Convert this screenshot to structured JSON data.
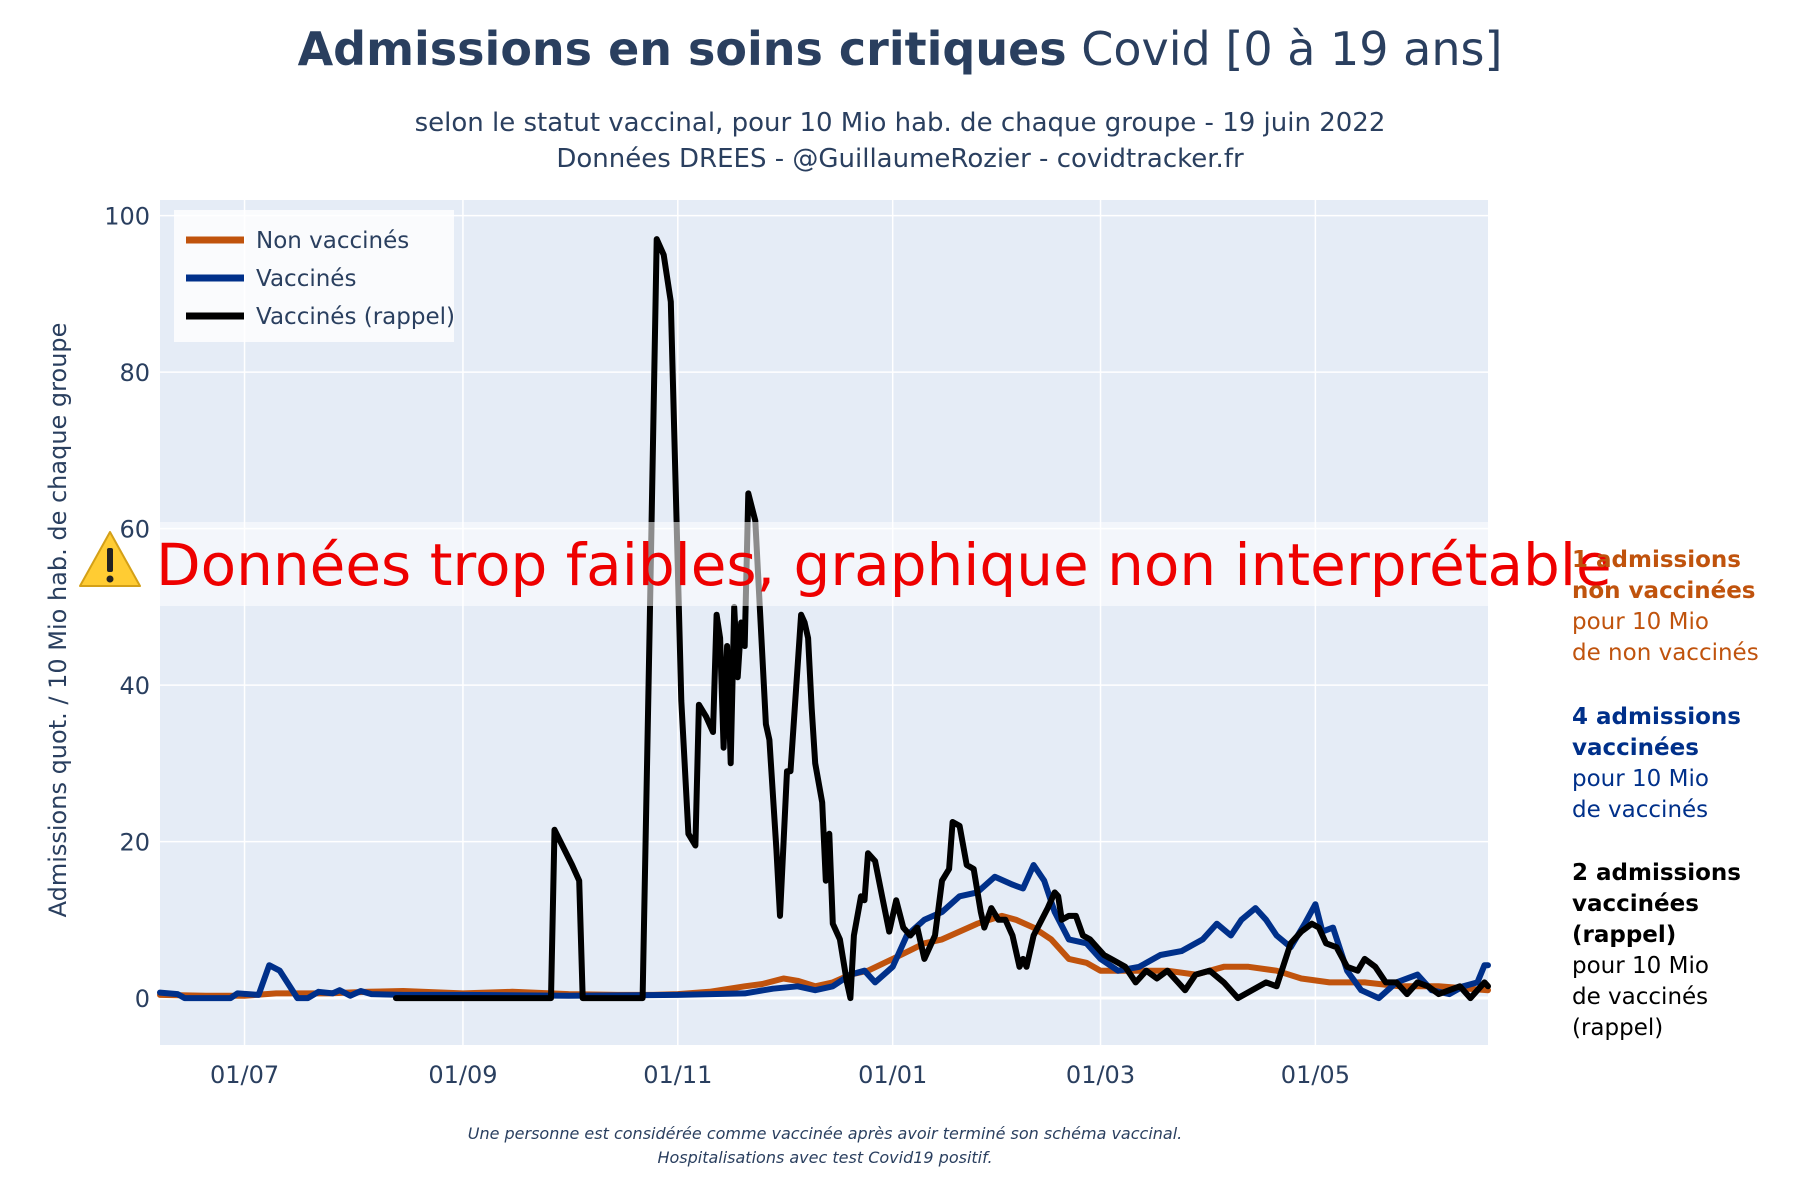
{
  "header": {
    "title_bold": "Admissions en soins critiques",
    "title_rest": "Covid [0 à 19 ans]",
    "subtitle_1": "selon le statut vaccinal, pour 10 Mio hab. de chaque groupe - 19 juin 2022",
    "subtitle_2": "Données DREES - @GuillaumeRozier - covidtracker.fr"
  },
  "warning": {
    "icon": "warning-icon",
    "text": "Données trop faibles, graphique non interprétable"
  },
  "side_notes": [
    {
      "bold_1": "1 admissions",
      "bold_2": "non vaccinées",
      "line_1": "pour 10 Mio",
      "line_2": "de non vaccinés",
      "color": "#c0530d"
    },
    {
      "bold_1": "4 admissions",
      "bold_2": "vaccinées",
      "line_1": "pour 10 Mio",
      "line_2": "de vaccinés",
      "color": "#00308a"
    },
    {
      "bold_1": "2 admissions",
      "bold_2": "vaccinées (rappel)",
      "line_1": "pour 10 Mio",
      "line_2": "de vaccinés (rappel)",
      "color": "#000000"
    }
  ],
  "footnote": {
    "line_1": "Une personne est considérée comme vaccinée après avoir terminé son schéma vaccinal.",
    "line_2": "Hospitalisations avec test Covid19 positif."
  },
  "chart_data": {
    "type": "line",
    "ylabel": "Admissions quot. / 10 Mio hab. de chaque groupe",
    "xlabel": "",
    "x_range": [
      "2021-06-07",
      "2022-06-19"
    ],
    "ylim": [
      -6,
      102
    ],
    "yticks": [
      0,
      20,
      40,
      60,
      80,
      100
    ],
    "xticks": [
      {
        "date": "2021-07-01",
        "label": "01/07"
      },
      {
        "date": "2021-09-01",
        "label": "01/09"
      },
      {
        "date": "2021-11-01",
        "label": "01/11"
      },
      {
        "date": "2022-01-01",
        "label": "01/01"
      },
      {
        "date": "2022-03-01",
        "label": "01/03"
      },
      {
        "date": "2022-05-01",
        "label": "01/05"
      }
    ],
    "grid": true,
    "legend_position": "top-left",
    "colors": {
      "plot_bg": "#e5ecf6",
      "grid": "#ffffff",
      "warning": "#ee0000"
    },
    "series": [
      {
        "name": "Non vaccinés",
        "color": "#c0530d",
        "points": [
          [
            "2021-06-07",
            0.4
          ],
          [
            "2021-06-20",
            0.3
          ],
          [
            "2021-07-01",
            0.3
          ],
          [
            "2021-07-10",
            0.6
          ],
          [
            "2021-07-25",
            0.6
          ],
          [
            "2021-08-05",
            0.8
          ],
          [
            "2021-08-15",
            0.9
          ],
          [
            "2021-09-01",
            0.6
          ],
          [
            "2021-09-15",
            0.8
          ],
          [
            "2021-10-01",
            0.5
          ],
          [
            "2021-10-15",
            0.4
          ],
          [
            "2021-10-25",
            0.4
          ],
          [
            "2021-11-01",
            0.5
          ],
          [
            "2021-11-10",
            0.8
          ],
          [
            "2021-11-20",
            1.5
          ],
          [
            "2021-11-25",
            1.8
          ],
          [
            "2021-12-01",
            2.5
          ],
          [
            "2021-12-05",
            2.2
          ],
          [
            "2021-12-10",
            1.5
          ],
          [
            "2021-12-15",
            2.0
          ],
          [
            "2021-12-20",
            3.0
          ],
          [
            "2021-12-25",
            3.5
          ],
          [
            "2022-01-01",
            5.0
          ],
          [
            "2022-01-10",
            7.0
          ],
          [
            "2022-01-15",
            7.5
          ],
          [
            "2022-01-25",
            9.5
          ],
          [
            "2022-02-01",
            10.5
          ],
          [
            "2022-02-05",
            10.0
          ],
          [
            "2022-02-10",
            9.0
          ],
          [
            "2022-02-15",
            7.5
          ],
          [
            "2022-02-20",
            5.0
          ],
          [
            "2022-02-25",
            4.5
          ],
          [
            "2022-03-01",
            3.5
          ],
          [
            "2022-03-10",
            3.5
          ],
          [
            "2022-03-20",
            3.5
          ],
          [
            "2022-03-28",
            3.0
          ],
          [
            "2022-04-05",
            4.0
          ],
          [
            "2022-04-12",
            4.0
          ],
          [
            "2022-04-20",
            3.5
          ],
          [
            "2022-04-27",
            2.5
          ],
          [
            "2022-05-05",
            2.0
          ],
          [
            "2022-05-15",
            2.0
          ],
          [
            "2022-05-25",
            1.5
          ],
          [
            "2022-06-05",
            1.5
          ],
          [
            "2022-06-19",
            1.0
          ]
        ]
      },
      {
        "name": "Vaccinés",
        "color": "#00308a",
        "points": [
          [
            "2021-06-07",
            0.7
          ],
          [
            "2021-06-12",
            0.5
          ],
          [
            "2021-06-14",
            0.0
          ],
          [
            "2021-06-27",
            0.0
          ],
          [
            "2021-06-29",
            0.6
          ],
          [
            "2021-07-05",
            0.4
          ],
          [
            "2021-07-08",
            4.2
          ],
          [
            "2021-07-11",
            3.5
          ],
          [
            "2021-07-16",
            0.0
          ],
          [
            "2021-07-19",
            0.0
          ],
          [
            "2021-07-22",
            0.8
          ],
          [
            "2021-07-26",
            0.6
          ],
          [
            "2021-07-28",
            1.0
          ],
          [
            "2021-07-31",
            0.3
          ],
          [
            "2021-08-03",
            0.9
          ],
          [
            "2021-08-06",
            0.5
          ],
          [
            "2021-08-15",
            0.4
          ],
          [
            "2021-09-01",
            0.4
          ],
          [
            "2021-10-01",
            0.3
          ],
          [
            "2021-11-01",
            0.4
          ],
          [
            "2021-11-20",
            0.6
          ],
          [
            "2021-11-28",
            1.2
          ],
          [
            "2021-12-05",
            1.5
          ],
          [
            "2021-12-10",
            1.0
          ],
          [
            "2021-12-15",
            1.5
          ],
          [
            "2021-12-20",
            3.0
          ],
          [
            "2021-12-24",
            3.5
          ],
          [
            "2021-12-27",
            2.0
          ],
          [
            "2022-01-01",
            4.0
          ],
          [
            "2022-01-05",
            8.0
          ],
          [
            "2022-01-10",
            10.0
          ],
          [
            "2022-01-15",
            11.0
          ],
          [
            "2022-01-20",
            13.0
          ],
          [
            "2022-01-25",
            13.5
          ],
          [
            "2022-01-30",
            15.5
          ],
          [
            "2022-02-04",
            14.5
          ],
          [
            "2022-02-07",
            14.0
          ],
          [
            "2022-02-10",
            17.0
          ],
          [
            "2022-02-13",
            15.0
          ],
          [
            "2022-02-16",
            11.0
          ],
          [
            "2022-02-20",
            7.5
          ],
          [
            "2022-02-25",
            7.0
          ],
          [
            "2022-03-01",
            5.0
          ],
          [
            "2022-03-06",
            3.5
          ],
          [
            "2022-03-12",
            4.0
          ],
          [
            "2022-03-18",
            5.5
          ],
          [
            "2022-03-24",
            6.0
          ],
          [
            "2022-03-30",
            7.5
          ],
          [
            "2022-04-03",
            9.5
          ],
          [
            "2022-04-07",
            8.0
          ],
          [
            "2022-04-10",
            10.0
          ],
          [
            "2022-04-14",
            11.5
          ],
          [
            "2022-04-17",
            10.0
          ],
          [
            "2022-04-20",
            8.0
          ],
          [
            "2022-04-24",
            6.5
          ],
          [
            "2022-04-28",
            9.5
          ],
          [
            "2022-05-01",
            12.0
          ],
          [
            "2022-05-03",
            8.5
          ],
          [
            "2022-05-06",
            9.0
          ],
          [
            "2022-05-10",
            3.5
          ],
          [
            "2022-05-14",
            1.0
          ],
          [
            "2022-05-19",
            0.0
          ],
          [
            "2022-05-24",
            2.0
          ],
          [
            "2022-05-30",
            3.0
          ],
          [
            "2022-06-03",
            1.0
          ],
          [
            "2022-06-08",
            0.5
          ],
          [
            "2022-06-12",
            1.5
          ],
          [
            "2022-06-16",
            2.0
          ],
          [
            "2022-06-18",
            4.2
          ],
          [
            "2022-06-19",
            4.2
          ]
        ]
      },
      {
        "name": "Vaccinés (rappel)",
        "color": "#000000",
        "points": [
          [
            "2021-08-13",
            0.0
          ],
          [
            "2021-09-26",
            0.0
          ],
          [
            "2021-09-27",
            21.5
          ],
          [
            "2021-10-02",
            17.0
          ],
          [
            "2021-10-04",
            15.0
          ],
          [
            "2021-10-05",
            0.0
          ],
          [
            "2021-10-22",
            0.0
          ],
          [
            "2021-10-24",
            47.0
          ],
          [
            "2021-10-26",
            97.0
          ],
          [
            "2021-10-28",
            95.0
          ],
          [
            "2021-10-30",
            89.0
          ],
          [
            "2021-11-02",
            38.0
          ],
          [
            "2021-11-04",
            21.0
          ],
          [
            "2021-11-06",
            19.5
          ],
          [
            "2021-11-07",
            37.5
          ],
          [
            "2021-11-09",
            36.0
          ],
          [
            "2021-11-11",
            34.0
          ],
          [
            "2021-11-12",
            49.0
          ],
          [
            "2021-11-13",
            46.0
          ],
          [
            "2021-11-14",
            32.0
          ],
          [
            "2021-11-15",
            45.0
          ],
          [
            "2021-11-16",
            30.0
          ],
          [
            "2021-11-17",
            50.0
          ],
          [
            "2021-11-18",
            41.0
          ],
          [
            "2021-11-19",
            48.0
          ],
          [
            "2021-11-20",
            45.0
          ],
          [
            "2021-11-21",
            64.5
          ],
          [
            "2021-11-23",
            61.0
          ],
          [
            "2021-11-26",
            35.0
          ],
          [
            "2021-11-27",
            33.0
          ],
          [
            "2021-11-29",
            19.0
          ],
          [
            "2021-11-30",
            10.5
          ],
          [
            "2021-12-02",
            29.0
          ],
          [
            "2021-12-03",
            29.0
          ],
          [
            "2021-12-06",
            49.0
          ],
          [
            "2021-12-07",
            48.0
          ],
          [
            "2021-12-08",
            46.0
          ],
          [
            "2021-12-09",
            37.0
          ],
          [
            "2021-12-10",
            30.0
          ],
          [
            "2021-12-12",
            25.0
          ],
          [
            "2021-12-13",
            15.0
          ],
          [
            "2021-12-14",
            21.0
          ],
          [
            "2021-12-15",
            9.5
          ],
          [
            "2021-12-17",
            7.5
          ],
          [
            "2021-12-19",
            2.0
          ],
          [
            "2021-12-20",
            0.0
          ],
          [
            "2021-12-21",
            8.0
          ],
          [
            "2021-12-23",
            13.0
          ],
          [
            "2021-12-24",
            12.5
          ],
          [
            "2021-12-25",
            18.5
          ],
          [
            "2021-12-27",
            17.5
          ],
          [
            "2021-12-29",
            13.0
          ],
          [
            "2021-12-31",
            8.5
          ],
          [
            "2022-01-02",
            12.5
          ],
          [
            "2022-01-04",
            9.0
          ],
          [
            "2022-01-06",
            8.0
          ],
          [
            "2022-01-08",
            9.0
          ],
          [
            "2022-01-10",
            5.0
          ],
          [
            "2022-01-13",
            8.0
          ],
          [
            "2022-01-15",
            15.0
          ],
          [
            "2022-01-17",
            16.5
          ],
          [
            "2022-01-18",
            22.5
          ],
          [
            "2022-01-20",
            22.0
          ],
          [
            "2022-01-22",
            17.0
          ],
          [
            "2022-01-24",
            16.5
          ],
          [
            "2022-01-26",
            11.0
          ],
          [
            "2022-01-27",
            9.0
          ],
          [
            "2022-01-29",
            11.5
          ],
          [
            "2022-01-31",
            10.0
          ],
          [
            "2022-02-02",
            10.0
          ],
          [
            "2022-02-04",
            8.0
          ],
          [
            "2022-02-06",
            4.0
          ],
          [
            "2022-02-07",
            5.0
          ],
          [
            "2022-02-08",
            4.0
          ],
          [
            "2022-02-10",
            8.0
          ],
          [
            "2022-02-14",
            11.5
          ],
          [
            "2022-02-16",
            13.5
          ],
          [
            "2022-02-17",
            13.0
          ],
          [
            "2022-02-18",
            10.0
          ],
          [
            "2022-02-20",
            10.5
          ],
          [
            "2022-02-22",
            10.5
          ],
          [
            "2022-02-24",
            8.0
          ],
          [
            "2022-02-26",
            7.5
          ],
          [
            "2022-02-28",
            6.5
          ],
          [
            "2022-03-02",
            5.5
          ],
          [
            "2022-03-04",
            5.0
          ],
          [
            "2022-03-08",
            4.0
          ],
          [
            "2022-03-11",
            2.0
          ],
          [
            "2022-03-14",
            3.5
          ],
          [
            "2022-03-17",
            2.5
          ],
          [
            "2022-03-20",
            3.5
          ],
          [
            "2022-03-23",
            2.0
          ],
          [
            "2022-03-25",
            1.0
          ],
          [
            "2022-03-28",
            3.0
          ],
          [
            "2022-04-01",
            3.5
          ],
          [
            "2022-04-05",
            2.0
          ],
          [
            "2022-04-09",
            0.0
          ],
          [
            "2022-04-13",
            1.0
          ],
          [
            "2022-04-17",
            2.0
          ],
          [
            "2022-04-20",
            1.5
          ],
          [
            "2022-04-24",
            7.0
          ],
          [
            "2022-04-27",
            8.5
          ],
          [
            "2022-04-30",
            9.5
          ],
          [
            "2022-05-02",
            9.0
          ],
          [
            "2022-05-04",
            7.0
          ],
          [
            "2022-05-07",
            6.5
          ],
          [
            "2022-05-10",
            4.0
          ],
          [
            "2022-05-13",
            3.5
          ],
          [
            "2022-05-15",
            5.0
          ],
          [
            "2022-05-18",
            4.0
          ],
          [
            "2022-05-21",
            2.0
          ],
          [
            "2022-05-24",
            2.0
          ],
          [
            "2022-05-27",
            0.5
          ],
          [
            "2022-05-30",
            2.0
          ],
          [
            "2022-06-02",
            1.5
          ],
          [
            "2022-06-05",
            0.5
          ],
          [
            "2022-06-08",
            1.0
          ],
          [
            "2022-06-11",
            1.5
          ],
          [
            "2022-06-14",
            0.0
          ],
          [
            "2022-06-16",
            1.0
          ],
          [
            "2022-06-18",
            2.0
          ],
          [
            "2022-06-19",
            1.5
          ]
        ]
      }
    ]
  }
}
